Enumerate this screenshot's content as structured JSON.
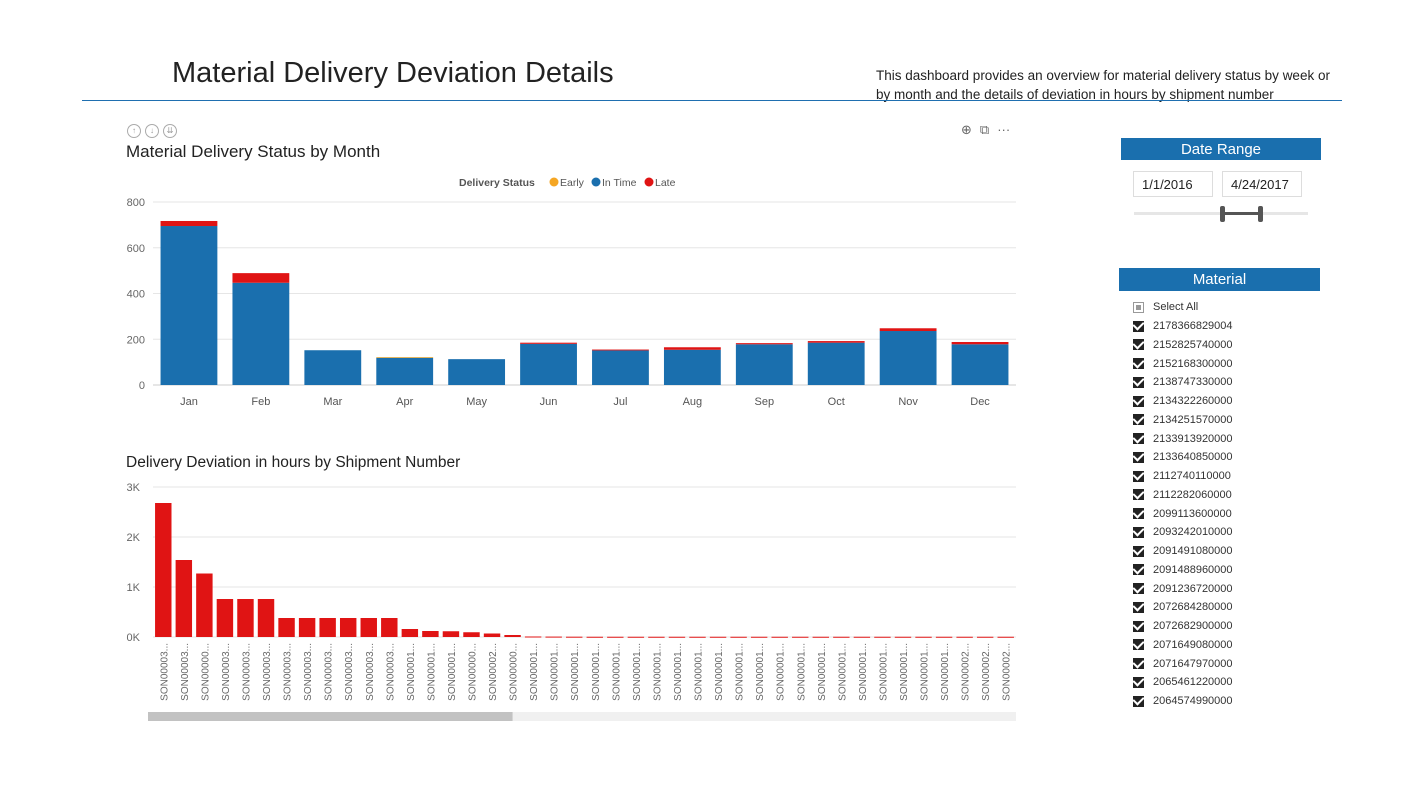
{
  "header": {
    "title": "Material Delivery Deviation Details",
    "description": "This dashboard provides an overview for material delivery status by week or by month and the details of deviation in hours by shipment number"
  },
  "icons": {
    "drill_up": "drill-up-icon",
    "drill_down": "drill-down-icon",
    "expand": "expand-icon",
    "download": "download-icon",
    "focus": "focus-mode-icon",
    "more": "more-options-icon"
  },
  "colors": {
    "early": "#f5a623",
    "in_time": "#1a6fae",
    "late": "#e01414",
    "header_blue": "#1a6fae"
  },
  "chart_data": [
    {
      "type": "bar",
      "stacked": true,
      "title": "Material Delivery Status by Month",
      "legend_title": "Delivery Status",
      "legend_position": "top-center",
      "categories": [
        "Jan",
        "Feb",
        "Mar",
        "Apr",
        "May",
        "Jun",
        "Jul",
        "Aug",
        "Sep",
        "Oct",
        "Nov",
        "Dec"
      ],
      "series": [
        {
          "name": "Early",
          "values": [
            0,
            0,
            0,
            3,
            0,
            0,
            0,
            0,
            0,
            0,
            0,
            0
          ]
        },
        {
          "name": "In Time",
          "values": [
            695,
            447,
            152,
            119,
            113,
            180,
            151,
            154,
            178,
            185,
            236,
            178
          ]
        },
        {
          "name": "Late",
          "values": [
            22,
            42,
            0,
            0,
            0,
            5,
            4,
            11,
            5,
            7,
            12,
            10
          ]
        }
      ],
      "yticks": [
        0,
        200,
        400,
        600,
        800
      ],
      "ylim": [
        0,
        800
      ],
      "grid": true
    },
    {
      "type": "bar",
      "title": "Delivery Deviation in hours  by Shipment Number",
      "yticks": [
        "0K",
        "1K",
        "2K",
        "3K"
      ],
      "ylim": [
        0,
        3000
      ],
      "grid": true,
      "categories": [
        "SON00003...",
        "SON00003...",
        "SON00000...",
        "SON00003...",
        "SON00003...",
        "SON00003...",
        "SON00003...",
        "SON00003...",
        "SON00003...",
        "SON00003...",
        "SON00003...",
        "SON00003...",
        "SON00001...",
        "SON00001...",
        "SON00001...",
        "SON00000...",
        "SON00002...",
        "SON00000...",
        "SON00001...",
        "SON00001...",
        "SON00001...",
        "SON00001...",
        "SON00001...",
        "SON00001...",
        "SON00001...",
        "SON00001...",
        "SON00001...",
        "SON00001...",
        "SON00001...",
        "SON00001...",
        "SON00001...",
        "SON00001...",
        "SON00001...",
        "SON00001...",
        "SON00001...",
        "SON00001...",
        "SON00001...",
        "SON00001...",
        "SON00001...",
        "SON00002...",
        "SON00002...",
        "SON00002..."
      ],
      "values": [
        2680,
        1540,
        1270,
        760,
        760,
        760,
        380,
        380,
        380,
        380,
        380,
        380,
        160,
        120,
        115,
        95,
        70,
        40,
        10,
        8,
        6,
        5,
        5,
        5,
        5,
        5,
        5,
        5,
        5,
        5,
        5,
        5,
        5,
        5,
        5,
        5,
        5,
        5,
        5,
        5,
        5,
        5
      ],
      "scrollbar": {
        "visible_fraction": 0.42
      }
    }
  ],
  "date_slicer": {
    "title": "Date Range",
    "start": "1/1/2016",
    "end": "4/24/2017"
  },
  "material_slicer": {
    "title": "Material",
    "select_all": "Select All",
    "items": [
      "2178366829004",
      "2152825740000",
      "2152168300000",
      "2138747330000",
      "2134322260000",
      "2134251570000",
      "2133913920000",
      "2133640850000",
      "2112740110000",
      "2112282060000",
      "2099113600000",
      "2093242010000",
      "2091491080000",
      "2091488960000",
      "2091236720000",
      "2072684280000",
      "2072682900000",
      "2071649080000",
      "2071647970000",
      "2065461220000",
      "2064574990000"
    ]
  }
}
